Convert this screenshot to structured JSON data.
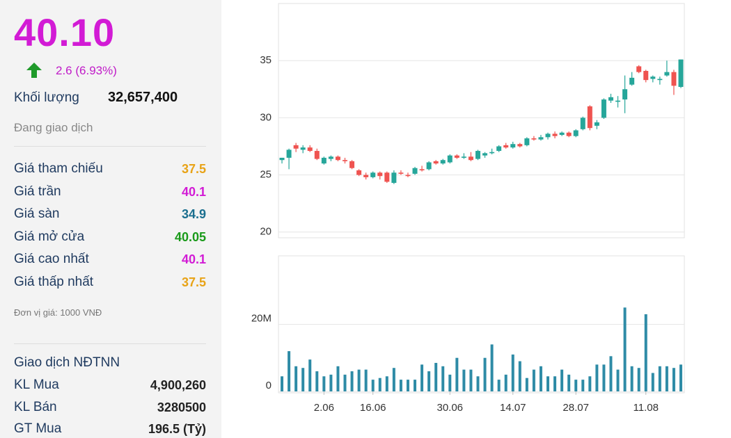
{
  "quote": {
    "price": "40.10",
    "change": "2.6 (6.93%)",
    "volume_label": "Khối lượng",
    "volume": "32,657,400",
    "status": "Đang giao dịch"
  },
  "prices": {
    "rows": [
      {
        "label": "Giá tham chiếu",
        "value": "37.5",
        "color": "#e8a317"
      },
      {
        "label": "Giá trần",
        "value": "40.1",
        "color": "#d21bd5"
      },
      {
        "label": "Giá sàn",
        "value": "34.9",
        "color": "#1b6f8f"
      },
      {
        "label": "Giá mở cửa",
        "value": "40.05",
        "color": "#1a9a1a"
      },
      {
        "label": "Giá cao nhất",
        "value": "40.1",
        "color": "#d21bd5"
      },
      {
        "label": "Giá thấp nhất",
        "value": "37.5",
        "color": "#e8a317"
      }
    ]
  },
  "unit_note": "Đơn vị giá: 1000 VNĐ",
  "foreign": {
    "title": "Giao dịch NĐTNN",
    "rows": [
      {
        "label": "KL Mua",
        "value": "4,900,260"
      },
      {
        "label": "KL Bán",
        "value": "3280500"
      },
      {
        "label": "GT Mua",
        "value": "196.5 (Tỷ)"
      }
    ]
  },
  "chart_data": [
    {
      "type": "candlestick",
      "up_color": "#26a69a",
      "down_color": "#ef5350",
      "ylim": [
        19.5,
        40
      ],
      "yticks": [
        20,
        25,
        30,
        35
      ],
      "grid": true,
      "open": [
        26.3,
        26.5,
        27.6,
        27.2,
        27.4,
        27.1,
        26.0,
        26.4,
        26.6,
        26.3,
        26.2,
        25.4,
        25.0,
        24.8,
        25.2,
        25.2,
        24.3,
        25.2,
        25.0,
        25.1,
        25.5,
        25.5,
        26.2,
        26.0,
        26.1,
        26.7,
        26.5,
        26.6,
        26.4,
        26.7,
        26.9,
        27.1,
        27.6,
        27.4,
        27.7,
        27.6,
        28.2,
        28.1,
        28.3,
        28.6,
        28.5,
        28.7,
        28.4,
        29.0,
        31.0,
        29.3,
        30.0,
        31.5,
        31.4,
        31.6,
        32.9,
        34.5,
        34.1,
        33.4,
        33.3,
        33.7,
        34.0,
        32.7
      ],
      "high": [
        26.5,
        27.3,
        27.8,
        27.6,
        27.6,
        27.3,
        26.6,
        26.7,
        26.7,
        26.5,
        26.3,
        25.5,
        25.2,
        25.3,
        25.3,
        25.3,
        25.4,
        25.4,
        25.2,
        25.7,
        25.8,
        26.2,
        26.3,
        26.4,
        26.8,
        26.8,
        26.9,
        27.0,
        27.2,
        27.0,
        27.3,
        27.6,
        27.8,
        27.9,
        27.8,
        28.3,
        28.4,
        28.5,
        28.7,
        28.8,
        28.8,
        28.8,
        29.0,
        30.1,
        31.1,
        29.8,
        31.7,
        32.1,
        31.9,
        33.7,
        34.0,
        34.6,
        34.2,
        33.7,
        33.6,
        35.0,
        34.2,
        35.1
      ],
      "low": [
        26.0,
        25.5,
        27.0,
        26.9,
        27.0,
        26.3,
        25.9,
        26.2,
        26.2,
        26.0,
        25.5,
        24.9,
        24.6,
        24.7,
        24.6,
        24.3,
        24.2,
        25.0,
        24.8,
        25.0,
        25.3,
        25.4,
        25.9,
        25.9,
        26.0,
        26.4,
        26.4,
        26.2,
        26.3,
        26.5,
        26.8,
        27.0,
        27.3,
        27.3,
        27.4,
        27.5,
        28.0,
        28.0,
        28.1,
        28.2,
        28.4,
        28.3,
        28.3,
        28.9,
        28.9,
        29.0,
        29.9,
        31.3,
        30.9,
        30.4,
        32.8,
        33.9,
        33.1,
        33.1,
        32.9,
        33.6,
        32.0,
        32.6
      ],
      "close": [
        26.5,
        27.2,
        27.3,
        27.4,
        27.1,
        26.4,
        26.5,
        26.6,
        26.3,
        26.2,
        25.6,
        25.0,
        24.8,
        25.2,
        24.9,
        24.4,
        25.2,
        25.1,
        24.9,
        25.6,
        25.4,
        26.1,
        26.0,
        26.3,
        26.7,
        26.5,
        26.6,
        26.3,
        27.1,
        26.9,
        27.0,
        27.5,
        27.4,
        27.7,
        27.5,
        28.2,
        28.1,
        28.3,
        28.6,
        28.4,
        28.7,
        28.4,
        28.9,
        30.0,
        29.1,
        29.6,
        31.6,
        31.8,
        31.5,
        32.5,
        33.5,
        34.0,
        33.3,
        33.6,
        33.4,
        34.0,
        32.8,
        35.1
      ]
    },
    {
      "type": "bar",
      "color": "#2e8ba6",
      "categories": [
        null,
        null,
        null,
        null,
        null,
        null,
        "2.06",
        null,
        null,
        null,
        null,
        null,
        null,
        "16.06",
        null,
        null,
        null,
        null,
        null,
        null,
        null,
        null,
        null,
        null,
        "30.06",
        null,
        null,
        null,
        null,
        null,
        null,
        null,
        null,
        "14.07",
        null,
        null,
        null,
        null,
        null,
        null,
        null,
        null,
        "28.07",
        null,
        null,
        null,
        null,
        null,
        null,
        null,
        null,
        null,
        "11.08",
        null,
        null,
        null,
        null,
        null
      ],
      "values": [
        4.5,
        12,
        7.5,
        7,
        9.5,
        6,
        4.5,
        5,
        7.5,
        5,
        6,
        6.5,
        6.5,
        3.5,
        4,
        4.5,
        7,
        3.5,
        3.5,
        3.5,
        8,
        6,
        8.5,
        7.5,
        5,
        10,
        6.5,
        6.5,
        4.5,
        10,
        14,
        3.5,
        5,
        11,
        9,
        4,
        6.5,
        7.5,
        4.5,
        4.5,
        6.5,
        5,
        3.5,
        3.5,
        4.5,
        8,
        8,
        10.5,
        6.5,
        25,
        7.5,
        7,
        23,
        5.5,
        7.5,
        7.5,
        7,
        8
      ],
      "ylim": [
        0,
        40.4
      ],
      "yticks": [
        {
          "value": 0,
          "label": "0"
        },
        {
          "value": 20,
          "label": "20M"
        }
      ],
      "grid": true
    }
  ]
}
